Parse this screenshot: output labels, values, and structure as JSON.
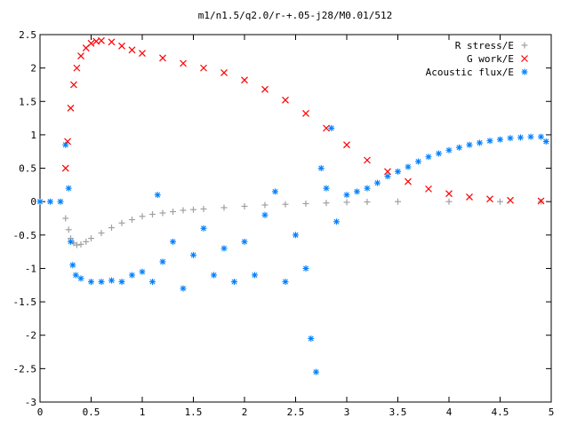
{
  "chart_data": {
    "type": "scatter",
    "title": "m1/n1.5/q2.0/r-+.05-j28/M0.01/512",
    "xlabel": "",
    "ylabel": "",
    "xlim": [
      0,
      5
    ],
    "ylim": [
      -3,
      2.5
    ],
    "x_ticks": [
      "0",
      "0.5",
      "1",
      "1.5",
      "2",
      "2.5",
      "3",
      "3.5",
      "4",
      "4.5",
      "5"
    ],
    "y_ticks": [
      "2.5",
      "2",
      "1.5",
      "1",
      "0.5",
      "0",
      "-0.5",
      "-1",
      "-1.5",
      "-2",
      "-2.5",
      "-3"
    ],
    "grid": false,
    "legend_position": "top-right",
    "series": [
      {
        "name": "R stress/E",
        "marker": "plus",
        "color": "#a0a0a0",
        "points": [
          [
            0.25,
            -0.25
          ],
          [
            0.28,
            -0.42
          ],
          [
            0.3,
            -0.55
          ],
          [
            0.33,
            -0.62
          ],
          [
            0.36,
            -0.65
          ],
          [
            0.4,
            -0.64
          ],
          [
            0.45,
            -0.6
          ],
          [
            0.5,
            -0.55
          ],
          [
            0.6,
            -0.47
          ],
          [
            0.7,
            -0.39
          ],
          [
            0.8,
            -0.32
          ],
          [
            0.9,
            -0.27
          ],
          [
            1.0,
            -0.22
          ],
          [
            1.1,
            -0.19
          ],
          [
            1.2,
            -0.17
          ],
          [
            1.3,
            -0.15
          ],
          [
            1.4,
            -0.13
          ],
          [
            1.5,
            -0.12
          ],
          [
            1.6,
            -0.11
          ],
          [
            1.8,
            -0.09
          ],
          [
            2.0,
            -0.07
          ],
          [
            2.2,
            -0.05
          ],
          [
            2.4,
            -0.04
          ],
          [
            2.6,
            -0.03
          ],
          [
            2.8,
            -0.02
          ],
          [
            3.0,
            -0.01
          ],
          [
            3.2,
            -0.005
          ],
          [
            3.5,
            0
          ],
          [
            4.0,
            0
          ],
          [
            4.5,
            0
          ],
          [
            4.9,
            0
          ]
        ]
      },
      {
        "name": "G work/E",
        "marker": "cross",
        "color": "#ff0000",
        "points": [
          [
            0.25,
            0.5
          ],
          [
            0.27,
            0.9
          ],
          [
            0.3,
            1.4
          ],
          [
            0.33,
            1.75
          ],
          [
            0.36,
            2.0
          ],
          [
            0.4,
            2.18
          ],
          [
            0.45,
            2.3
          ],
          [
            0.5,
            2.37
          ],
          [
            0.55,
            2.4
          ],
          [
            0.6,
            2.41
          ],
          [
            0.7,
            2.39
          ],
          [
            0.8,
            2.33
          ],
          [
            0.9,
            2.27
          ],
          [
            1.0,
            2.22
          ],
          [
            1.2,
            2.15
          ],
          [
            1.4,
            2.07
          ],
          [
            1.6,
            2.0
          ],
          [
            1.8,
            1.93
          ],
          [
            2.0,
            1.82
          ],
          [
            2.2,
            1.68
          ],
          [
            2.4,
            1.52
          ],
          [
            2.6,
            1.32
          ],
          [
            2.8,
            1.1
          ],
          [
            3.0,
            0.85
          ],
          [
            3.2,
            0.62
          ],
          [
            3.4,
            0.45
          ],
          [
            3.6,
            0.3
          ],
          [
            3.8,
            0.19
          ],
          [
            4.0,
            0.12
          ],
          [
            4.2,
            0.07
          ],
          [
            4.4,
            0.04
          ],
          [
            4.6,
            0.02
          ],
          [
            4.9,
            0.01
          ]
        ]
      },
      {
        "name": "Acoustic flux/E",
        "marker": "star",
        "color": "#0080ff",
        "points": [
          [
            0,
            0
          ],
          [
            0.1,
            0
          ],
          [
            0.2,
            0
          ],
          [
            0.25,
            0.85
          ],
          [
            0.28,
            0.2
          ],
          [
            0.3,
            -0.6
          ],
          [
            0.32,
            -0.95
          ],
          [
            0.35,
            -1.1
          ],
          [
            0.4,
            -1.15
          ],
          [
            0.5,
            -1.2
          ],
          [
            0.6,
            -1.2
          ],
          [
            0.7,
            -1.18
          ],
          [
            0.8,
            -1.2
          ],
          [
            0.9,
            -1.1
          ],
          [
            1.0,
            -1.05
          ],
          [
            1.1,
            -1.2
          ],
          [
            1.15,
            0.1
          ],
          [
            1.2,
            -0.9
          ],
          [
            1.3,
            -0.6
          ],
          [
            1.4,
            -1.3
          ],
          [
            1.5,
            -0.8
          ],
          [
            1.6,
            -0.4
          ],
          [
            1.7,
            -1.1
          ],
          [
            1.8,
            -0.7
          ],
          [
            1.9,
            -1.2
          ],
          [
            2.0,
            -0.6
          ],
          [
            2.1,
            -1.1
          ],
          [
            2.2,
            -0.2
          ],
          [
            2.3,
            0.15
          ],
          [
            2.4,
            -1.2
          ],
          [
            2.5,
            -0.5
          ],
          [
            2.6,
            -1.0
          ],
          [
            2.65,
            -2.05
          ],
          [
            2.7,
            -2.55
          ],
          [
            2.75,
            0.5
          ],
          [
            2.8,
            0.2
          ],
          [
            2.85,
            1.1
          ],
          [
            2.9,
            -0.3
          ],
          [
            3.0,
            0.1
          ],
          [
            3.1,
            0.15
          ],
          [
            3.2,
            0.2
          ],
          [
            3.3,
            0.28
          ],
          [
            3.4,
            0.38
          ],
          [
            3.5,
            0.45
          ],
          [
            3.6,
            0.52
          ],
          [
            3.7,
            0.6
          ],
          [
            3.8,
            0.67
          ],
          [
            3.9,
            0.72
          ],
          [
            4.0,
            0.77
          ],
          [
            4.1,
            0.81
          ],
          [
            4.2,
            0.85
          ],
          [
            4.3,
            0.88
          ],
          [
            4.4,
            0.91
          ],
          [
            4.5,
            0.93
          ],
          [
            4.6,
            0.95
          ],
          [
            4.7,
            0.96
          ],
          [
            4.8,
            0.97
          ],
          [
            4.9,
            0.97
          ],
          [
            4.95,
            0.9
          ]
        ]
      }
    ]
  }
}
